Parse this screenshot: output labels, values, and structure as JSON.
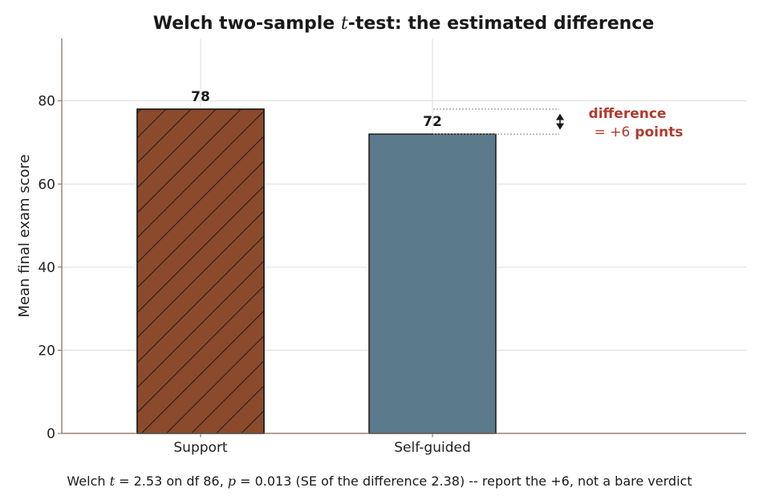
{
  "chart_data": {
    "type": "bar",
    "title_prefix": "Welch two-sample ",
    "title_var": "t",
    "title_suffix": "-test: the estimated difference",
    "xlabel": "",
    "ylabel": "Mean final exam score",
    "ylim": [
      0,
      95
    ],
    "yticks": [
      0,
      20,
      40,
      60,
      80
    ],
    "categories": [
      "Support",
      "Self-guided"
    ],
    "values": [
      78,
      72
    ],
    "value_labels": [
      "78",
      "72"
    ],
    "colors": [
      "#8b4a2b",
      "#5b7a8c"
    ],
    "hatched": [
      true,
      false
    ],
    "grid": true,
    "annotation": {
      "line1": "difference",
      "line2_eq": "= +6",
      "line2_word": " points",
      "color": "#b03a2e"
    },
    "footnote": {
      "p1": "Welch ",
      "t_var": "t",
      "t_eq": " = 2.53",
      "p2": " on df ",
      "df": "86",
      "p3": ", ",
      "p_var": "p",
      "p_eq": " = 0.013",
      "p4": " (SE of the difference ",
      "se": "2.38",
      "p5": ") -- report the ",
      "diff": "+6",
      "p6": ", not a bare verdict"
    }
  }
}
